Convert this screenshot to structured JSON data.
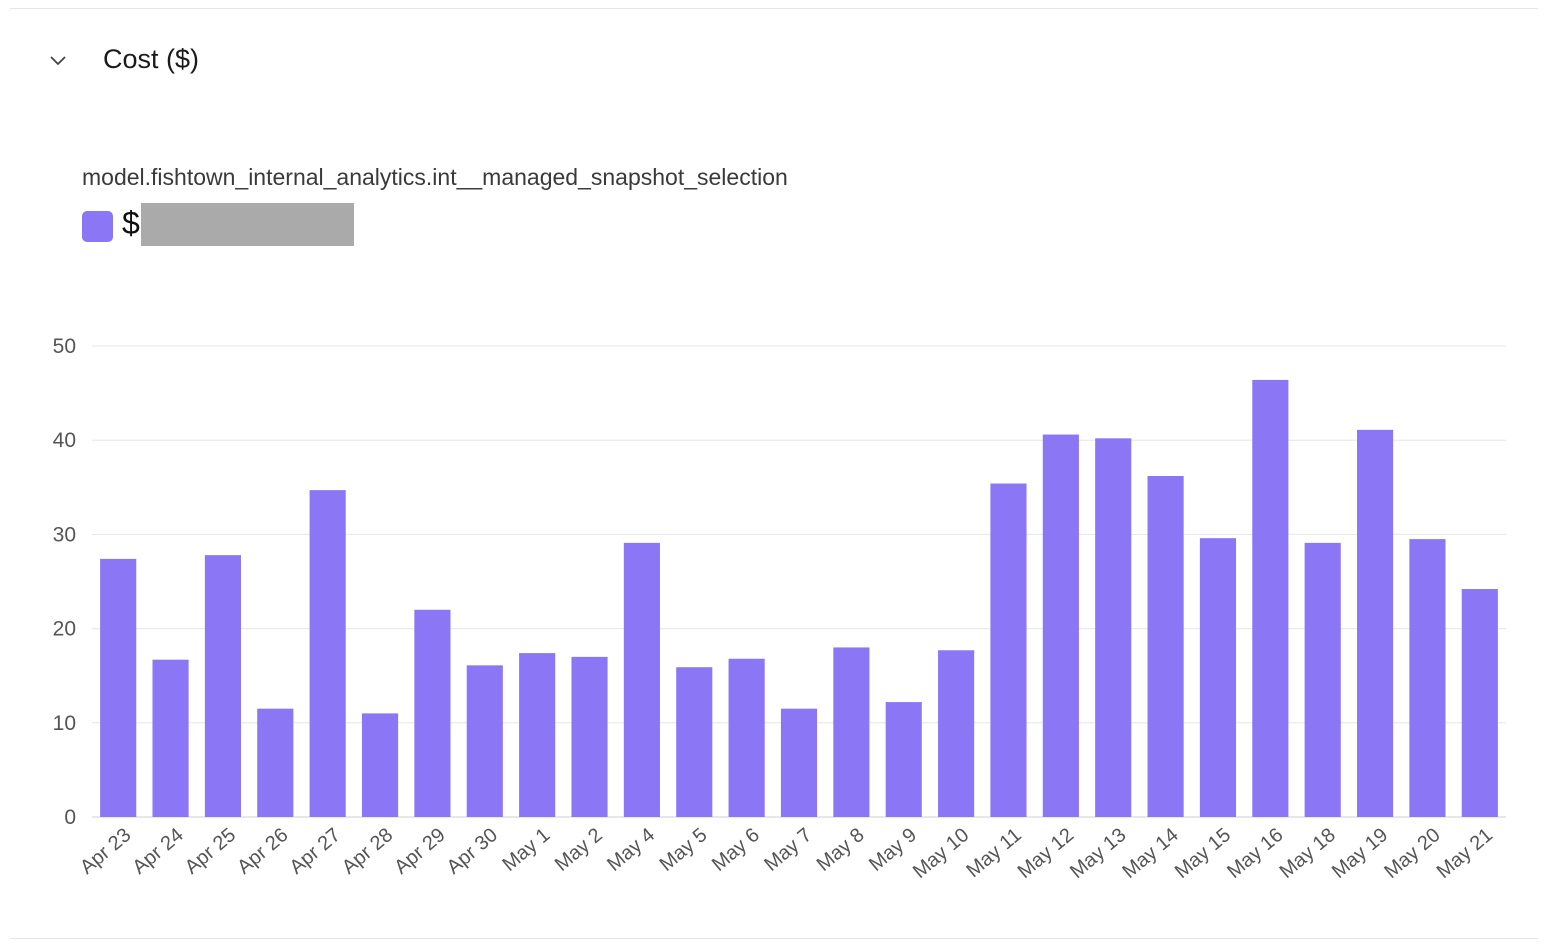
{
  "section": {
    "title": "Cost ($)",
    "collapse_icon": "chevron-down-icon"
  },
  "legend": {
    "model_name": "model.fishtown_internal_analytics.int__managed_snapshot_selection",
    "value_prefix": "$",
    "value_redacted": true,
    "color": "#8b77f5"
  },
  "chart_data": {
    "type": "bar",
    "title": "Cost ($)",
    "xlabel": "",
    "ylabel": "",
    "ylim": [
      0,
      50
    ],
    "yticks": [
      0,
      10,
      20,
      30,
      40,
      50
    ],
    "grid": true,
    "color": "#8b77f5",
    "categories": [
      "Apr 23",
      "Apr 24",
      "Apr 25",
      "Apr 26",
      "Apr 27",
      "Apr 28",
      "Apr 29",
      "Apr 30",
      "May 1",
      "May 2",
      "May 4",
      "May 5",
      "May 6",
      "May 7",
      "May 8",
      "May 9",
      "May 10",
      "May 11",
      "May 12",
      "May 13",
      "May 14",
      "May 15",
      "May 16",
      "May 18",
      "May 19",
      "May 20",
      "May 21"
    ],
    "values": [
      27.4,
      16.7,
      27.8,
      11.5,
      34.7,
      11.0,
      22.0,
      16.1,
      17.4,
      17.0,
      29.1,
      15.9,
      16.8,
      11.5,
      18.0,
      12.2,
      17.7,
      35.4,
      40.6,
      40.2,
      36.2,
      29.6,
      46.4,
      29.1,
      41.1,
      29.5,
      24.2
    ]
  }
}
